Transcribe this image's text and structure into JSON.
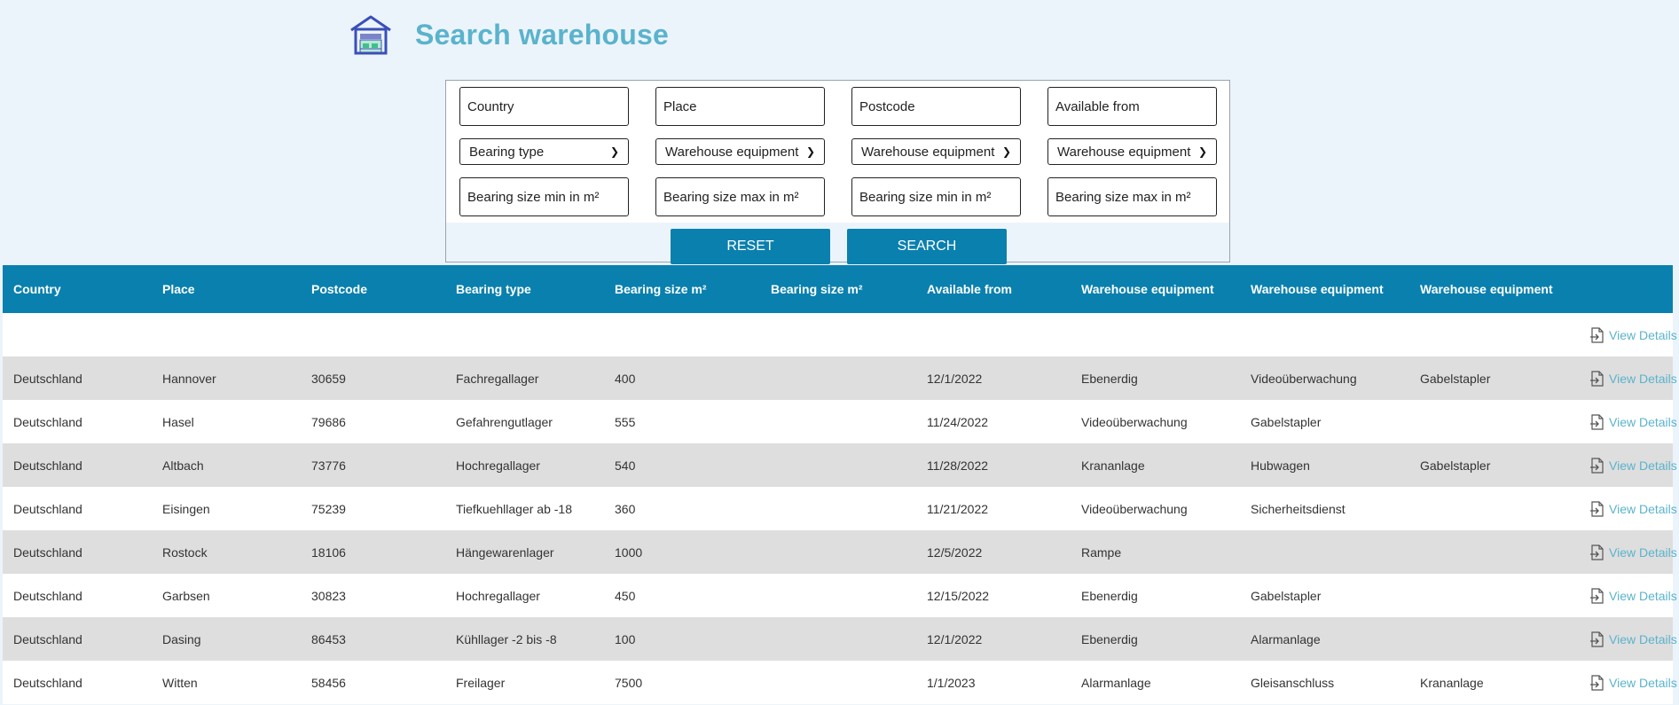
{
  "header": {
    "title": "Search warehouse",
    "logo_icon": "warehouse-icon"
  },
  "search": {
    "row1": [
      "Country",
      "Place",
      "Postcode",
      "Available from"
    ],
    "row2": [
      "Bearing type",
      "Warehouse equipment",
      "Warehouse equipment",
      "Warehouse equipment"
    ],
    "row3": [
      "Bearing size min in m²",
      "Bearing size max in m²",
      "Bearing size min in m²",
      "Bearing size max in m²"
    ],
    "reset_label": "RESET",
    "search_label": "SEARCH"
  },
  "table": {
    "columns": [
      "Country",
      "Place",
      "Postcode",
      "Bearing type",
      "Bearing size m²",
      "Bearing size m²",
      "Available from",
      "Warehouse equipment",
      "Warehouse equipment",
      "Warehouse equipment"
    ],
    "view_label": "View Details",
    "rows": [
      [
        "",
        "",
        "",
        "",
        "",
        "",
        "",
        "",
        "",
        ""
      ],
      [
        "Deutschland",
        "Hannover",
        "30659",
        "Fachregallager",
        "400",
        "",
        "12/1/2022",
        "Ebenerdig",
        "Videoüberwachung",
        "Gabelstapler"
      ],
      [
        "Deutschland",
        "Hasel",
        "79686",
        "Gefahrengutlager",
        "555",
        "",
        "11/24/2022",
        "Videoüberwachung",
        "Gabelstapler",
        ""
      ],
      [
        "Deutschland",
        "Altbach",
        "73776",
        "Hochregallager",
        "540",
        "",
        "11/28/2022",
        "Krananlage",
        "Hubwagen",
        "Gabelstapler"
      ],
      [
        "Deutschland",
        "Eisingen",
        "75239",
        "Tiefkuehllager ab -18",
        "360",
        "",
        "11/21/2022",
        "Videoüberwachung",
        "Sicherheitsdienst",
        ""
      ],
      [
        "Deutschland",
        "Rostock",
        "18106",
        "Hängewarenlager",
        "1000",
        "",
        "12/5/2022",
        "Rampe",
        "",
        ""
      ],
      [
        "Deutschland",
        "Garbsen",
        "30823",
        "Hochregallager",
        "450",
        "",
        "12/15/2022",
        "Ebenerdig",
        "Gabelstapler",
        ""
      ],
      [
        "Deutschland",
        "Dasing",
        "86453",
        "Kühllager -2 bis -8",
        "100",
        "",
        "12/1/2022",
        "Ebenerdig",
        "Alarmanlage",
        ""
      ],
      [
        "Deutschland",
        "Witten",
        "58456",
        "Freilager",
        "7500",
        "",
        "1/1/2023",
        "Alarmanlage",
        "Gleisanschluss",
        "Krananlage"
      ]
    ]
  },
  "colors": {
    "accent": "#0a80ae",
    "title": "#5ab3cc",
    "row_alt": "#dedede",
    "page_bg": "#ecf4fb"
  }
}
